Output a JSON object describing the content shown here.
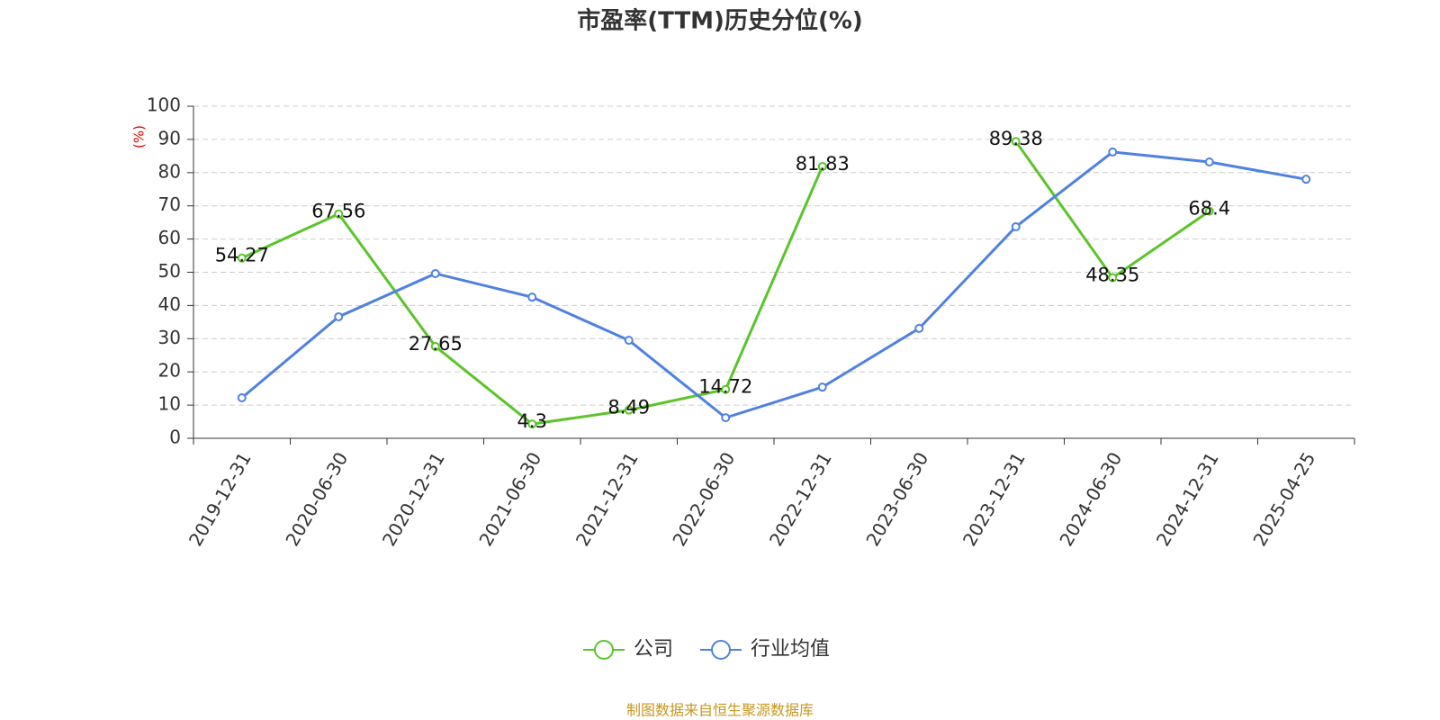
{
  "chart_data": {
    "type": "line",
    "title": "市盈率(TTM)历史分位(%)",
    "y_label": "(%)",
    "source": "制图数据来自恒生聚源数据库",
    "categories": [
      "2019-12-31",
      "2020-06-30",
      "2020-12-31",
      "2021-06-30",
      "2021-12-31",
      "2022-06-30",
      "2022-12-31",
      "2023-06-30",
      "2023-12-31",
      "2024-06-30",
      "2024-12-31",
      "2025-04-25"
    ],
    "series": [
      {
        "name": "公司",
        "color": "#5bc42a",
        "values": [
          54.27,
          67.56,
          27.65,
          4.3,
          8.49,
          14.72,
          81.83,
          null,
          89.38,
          48.35,
          68.4,
          null
        ],
        "show_labels": true
      },
      {
        "name": "行业均值",
        "color": "#4f81e0",
        "values": [
          12.2,
          36.6,
          49.6,
          42.5,
          29.5,
          6.2,
          15.4,
          33.1,
          63.7,
          86.2,
          83.2,
          78.0
        ],
        "show_labels": false
      }
    ],
    "ylim": [
      0,
      100
    ],
    "yticks": [
      0,
      10,
      20,
      30,
      40,
      50,
      60,
      70,
      80,
      90,
      100
    ],
    "grid": true,
    "legend": "bottom"
  }
}
